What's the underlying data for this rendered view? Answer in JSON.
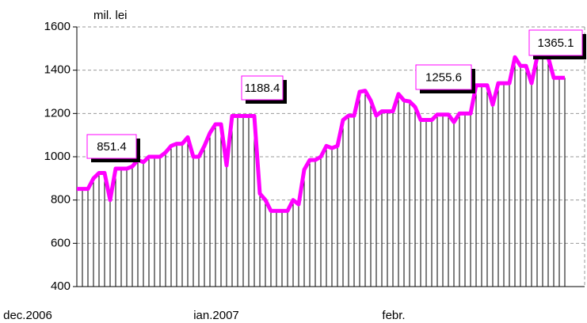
{
  "chart_data": {
    "type": "line",
    "y_label": "mil. lei",
    "categories": [
      "dec.2006",
      null,
      null,
      null,
      null,
      null,
      null,
      null,
      null,
      null,
      null,
      null,
      null,
      null,
      null,
      null,
      null,
      null,
      null,
      null,
      null,
      null,
      null,
      null,
      null,
      null,
      null,
      null,
      null,
      null,
      null,
      null,
      null,
      null,
      "ian.2007",
      null,
      null,
      null,
      null,
      null,
      null,
      null,
      null,
      null,
      null,
      null,
      null,
      null,
      null,
      null,
      null,
      null,
      null,
      null,
      null,
      null,
      null,
      null,
      null,
      null,
      null,
      null,
      null,
      null,
      null,
      null,
      "febr.",
      null,
      null,
      null,
      null,
      null,
      null,
      null,
      null,
      null,
      null,
      null,
      null,
      null,
      null,
      null,
      null,
      null,
      null,
      null,
      null,
      null,
      null
    ],
    "series": [
      {
        "name": "mil. lei",
        "color": "#ff00ff",
        "values": [
          851.4,
          851.4,
          851.4,
          900,
          925,
          925,
          800,
          945,
          945,
          945,
          955,
          985,
          975,
          1000,
          1000,
          1000,
          1020,
          1050,
          1060,
          1060,
          1090,
          1000,
          1000,
          1050,
          1110,
          1150,
          1150,
          960,
          1188.4,
          1188.4,
          1188.4,
          1188.4,
          1188.4,
          830,
          800,
          750,
          750,
          750,
          750,
          800,
          780,
          940,
          985,
          985,
          1000,
          1050,
          1040,
          1050,
          1170,
          1190,
          1190,
          1300,
          1305,
          1260,
          1190,
          1210,
          1210,
          1210,
          1290,
          1260,
          1255.6,
          1230,
          1170,
          1170,
          1170,
          1195,
          1195,
          1195,
          1160,
          1200,
          1200,
          1200,
          1330,
          1330,
          1330,
          1240,
          1340,
          1340,
          1340,
          1460,
          1420,
          1420,
          1340,
          1460,
          1460,
          1460,
          1365.1,
          1365.1,
          1365.1
        ]
      }
    ],
    "annotations": [
      "851.4",
      "1188.4",
      "1255.6",
      "1365.1"
    ],
    "ylim": [
      400,
      1600
    ],
    "yticks": [
      400,
      600,
      800,
      1000,
      1200,
      1400,
      1600
    ],
    "grid": true
  }
}
